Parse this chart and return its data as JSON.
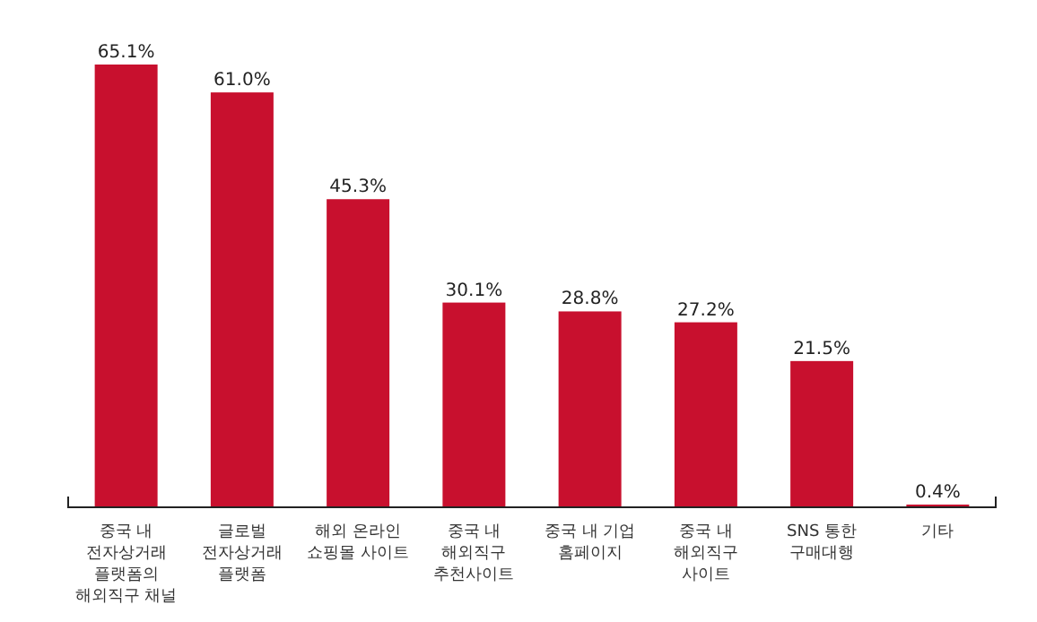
{
  "chart_data": {
    "type": "bar",
    "categories": [
      "중국 내\n전자상거래\n플랫폼의\n해외직구 채널",
      "글로벌\n전자상거래\n플랫폼",
      "해외 온라인\n쇼핑몰 사이트",
      "중국 내\n해외직구\n추천사이트",
      "중국 내 기업\n홈페이지",
      "중국 내\n해외직구\n사이트",
      "SNS 통한\n구매대행",
      "기타"
    ],
    "values": [
      65.1,
      61.0,
      45.3,
      30.1,
      28.8,
      27.2,
      21.5,
      0.4
    ],
    "value_labels": [
      "65.1%",
      "61.0%",
      "45.3%",
      "30.1%",
      "28.8%",
      "27.2%",
      "21.5%",
      "0.4%"
    ],
    "color": "#c8102e",
    "relative": false
  }
}
